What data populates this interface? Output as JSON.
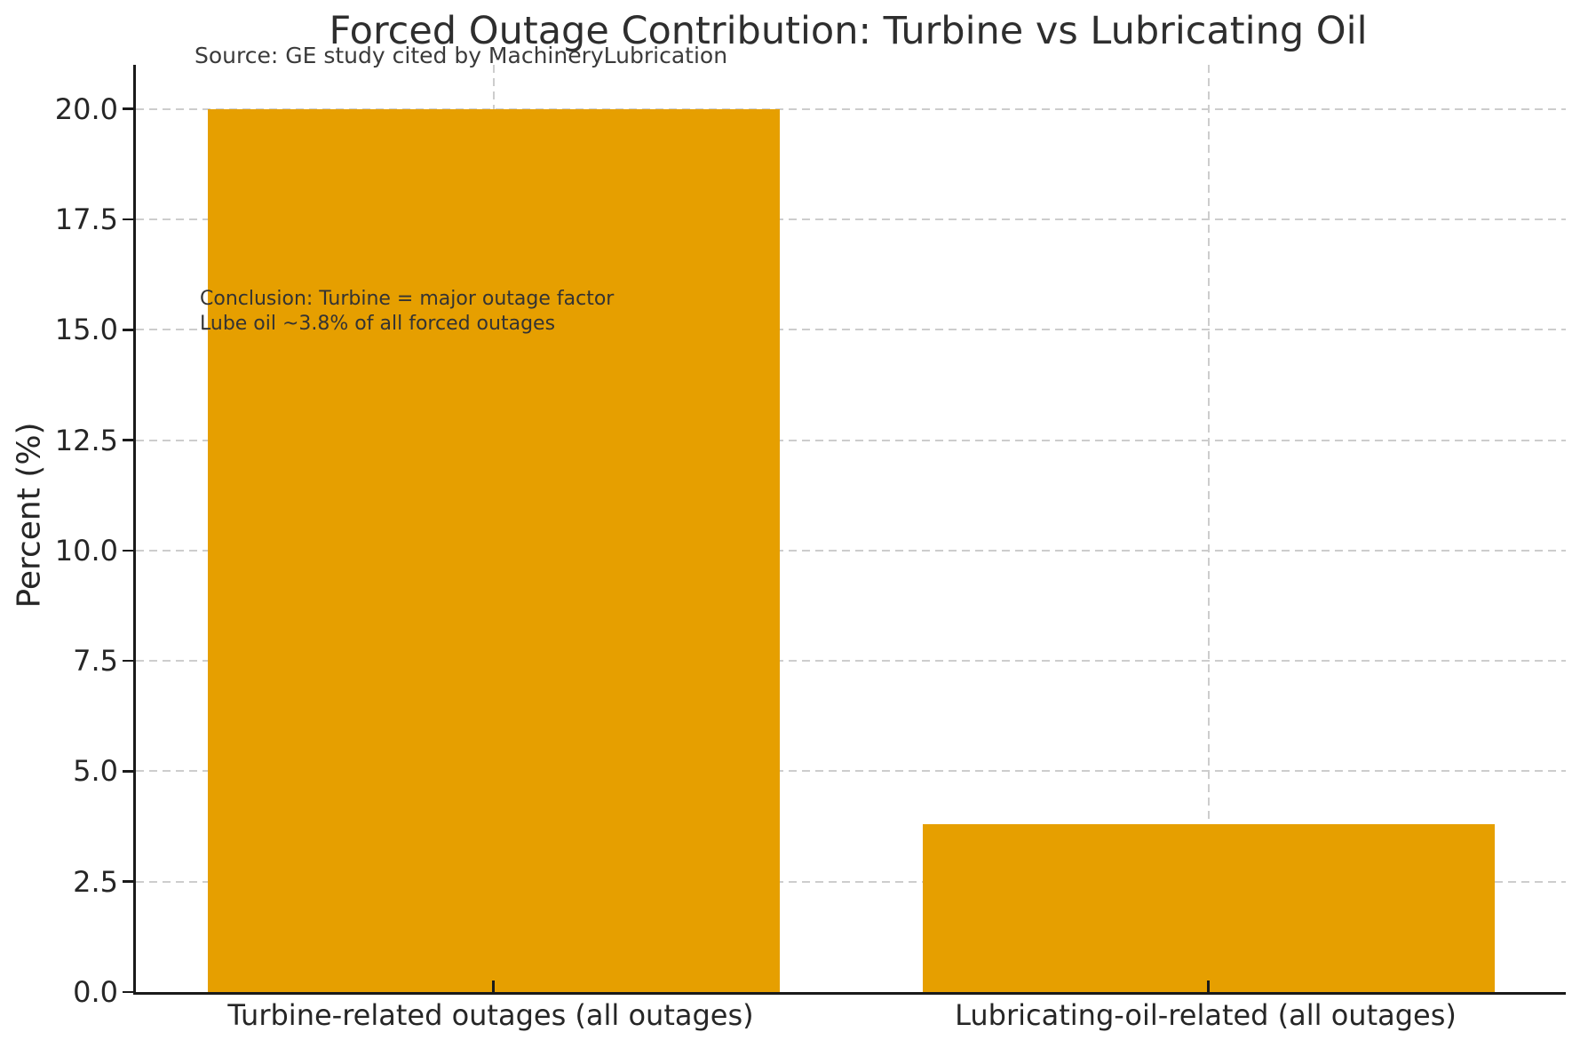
{
  "chart_data": {
    "type": "bar",
    "title": "Forced Outage Contribution: Turbine vs Lubricating Oil",
    "source_note": "Source: GE study cited by MachineryLubrication",
    "ylabel": "Percent (%)",
    "xlabel": "",
    "categories": [
      "Turbine-related outages (all outages)",
      "Lubricating-oil-related (all outages)"
    ],
    "values": [
      20.0,
      3.8
    ],
    "ylim": [
      0,
      21
    ],
    "yticks": [
      0.0,
      2.5,
      5.0,
      7.5,
      10.0,
      12.5,
      15.0,
      17.5,
      20.0
    ],
    "ytick_labels": [
      "0.0",
      "2.5",
      "5.0",
      "7.5",
      "10.0",
      "12.5",
      "15.0",
      "17.5",
      "20.0"
    ],
    "annotation": {
      "lines": [
        "Conclusion: Turbine = major outage factor",
        "Lube oil ~3.8% of all forced outages"
      ]
    },
    "bar_color": "#E69F00",
    "grid": {
      "style": "dashed",
      "color": "#cdcdcd",
      "horizontal": true,
      "vertical_at_bar_centers": true
    },
    "legend": "none"
  }
}
